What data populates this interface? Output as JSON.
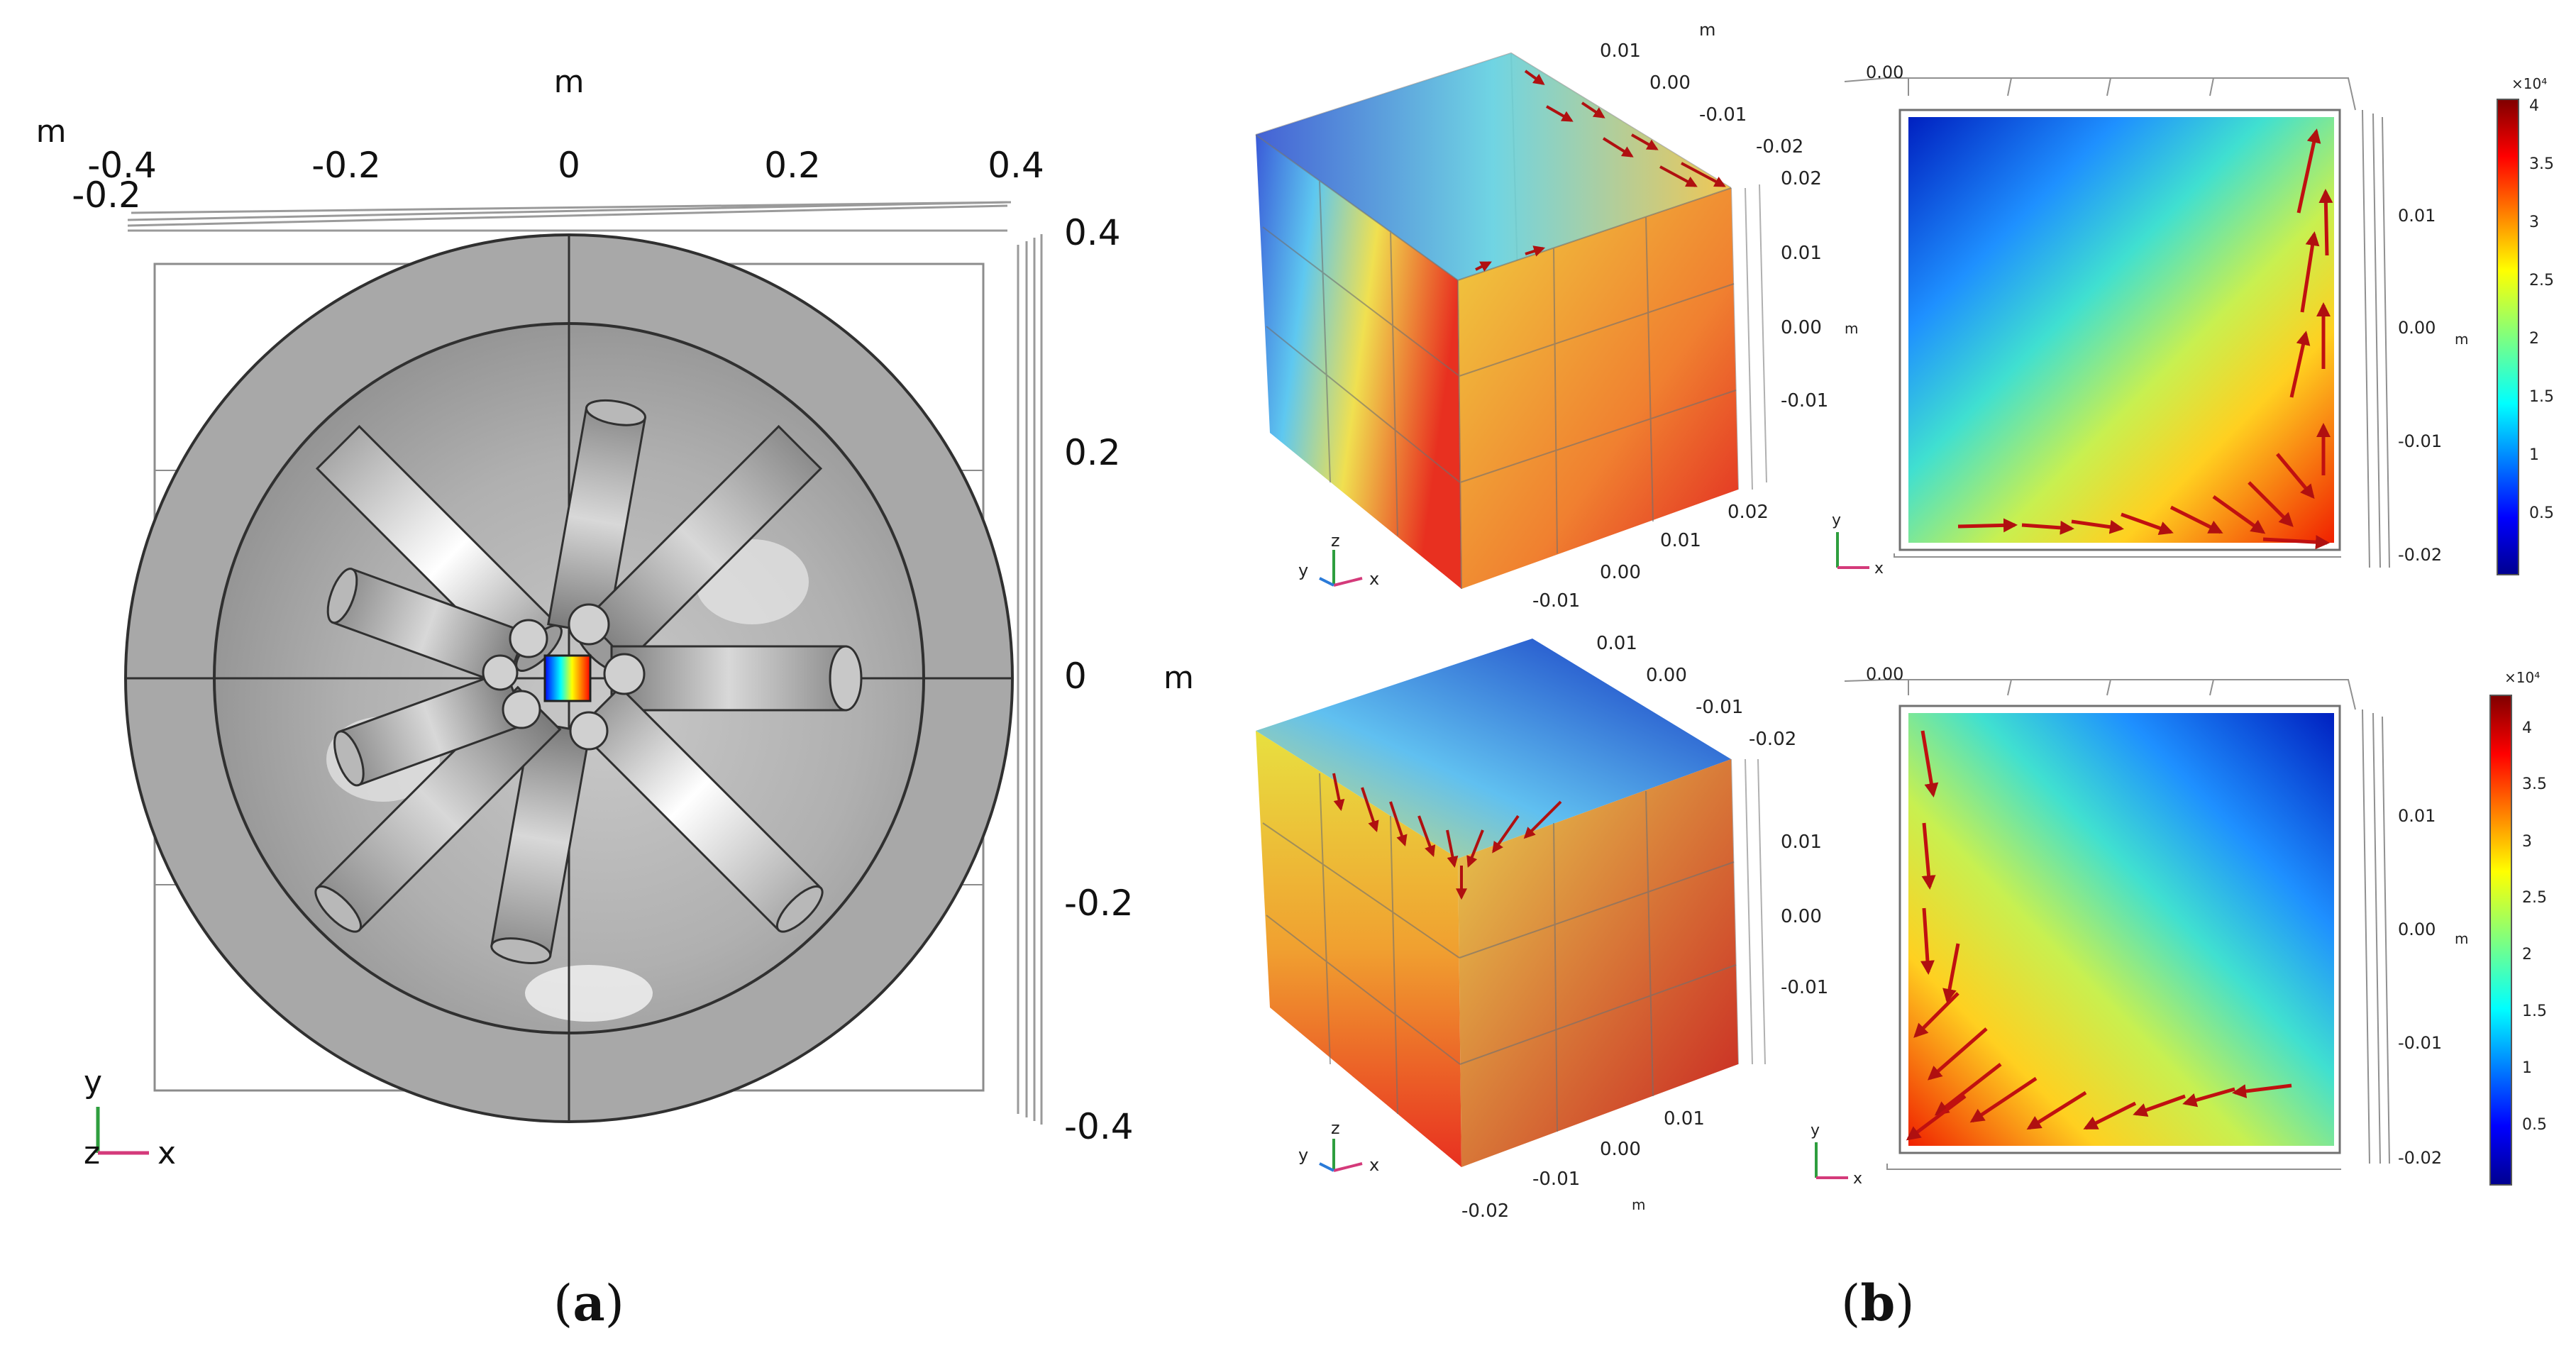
{
  "panel_a": {
    "caption_letter": "a",
    "axis_unit": "m",
    "top_ticks": [
      "-0.4",
      "-0.2",
      "0",
      "0.2",
      "0.4"
    ],
    "top_extra": "-0.2",
    "right_ticks": [
      "0.4",
      "0.2",
      "0",
      "-0.2",
      "-0.4"
    ],
    "triad": {
      "y": "y",
      "z": "z",
      "x": "x"
    }
  },
  "panel_b": {
    "caption_letter": "b",
    "unit": "m",
    "cube_top": {
      "ticks_back": [
        "0.01",
        "0.00",
        "-0.01",
        "-0.02"
      ],
      "ticks_right": [
        "0.02",
        "0.01",
        "0.00",
        "-0.01"
      ],
      "ticks_bottom": [
        "-0.01",
        "0.00",
        "0.01",
        "0.02"
      ],
      "bottom_unit": "",
      "triad": {
        "z": "z",
        "y": "y",
        "x": "x"
      }
    },
    "cube_bottom": {
      "ticks_back": [
        "0.01",
        "0.00",
        "-0.01",
        "-0.02"
      ],
      "ticks_right": [
        "0.01",
        "0.00",
        "-0.01"
      ],
      "ticks_bottom": [
        "-0.02",
        "-0.01",
        "0.00",
        "0.01"
      ],
      "bottom_unit": "m",
      "triad": {
        "z": "z",
        "y": "y",
        "x": "x"
      }
    },
    "slice_top": {
      "top_label": "0.00",
      "right_ticks": [
        "0.01",
        "0.00",
        "-0.01",
        "-0.02"
      ],
      "triad": {
        "y": "y",
        "x": "x"
      }
    },
    "slice_bottom": {
      "top_label": "0.00",
      "right_ticks": [
        "0.01",
        "0.00",
        "-0.01",
        "-0.02"
      ],
      "triad": {
        "y": "y",
        "x": "x"
      }
    },
    "colorbar_top": {
      "exponent": "×10⁴",
      "ticks": [
        "4",
        "3.5",
        "3",
        "2.5",
        "2",
        "1.5",
        "1",
        "0.5"
      ]
    },
    "colorbar_bottom": {
      "exponent": "×10⁴",
      "ticks": [
        "4",
        "3.5",
        "3",
        "2.5",
        "2",
        "1.5",
        "1",
        "0.5"
      ]
    }
  }
}
